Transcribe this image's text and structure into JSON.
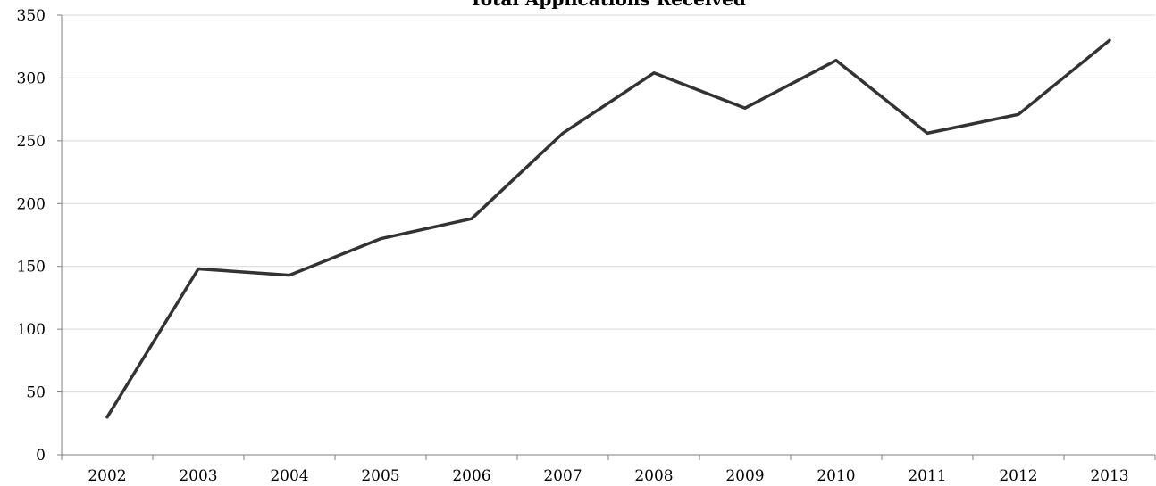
{
  "chart_data": {
    "type": "line",
    "title": "Total Applications Received",
    "xlabel": "",
    "ylabel": "",
    "categories": [
      "2002",
      "2003",
      "2004",
      "2005",
      "2006",
      "2007",
      "2008",
      "2009",
      "2010",
      "2011",
      "2012",
      "2013"
    ],
    "series": [
      {
        "values": [
          30,
          148,
          143,
          172,
          188,
          256,
          304,
          276,
          314,
          256,
          271,
          330
        ]
      }
    ],
    "ylim": [
      0,
      350
    ],
    "yticks": [
      "0",
      "50",
      "100",
      "150",
      "200",
      "250",
      "300",
      "350"
    ],
    "grid": true,
    "legend": "none",
    "colors": {
      "line": "#333333",
      "grid": "#d9d9d9",
      "axis": "#808080"
    }
  }
}
